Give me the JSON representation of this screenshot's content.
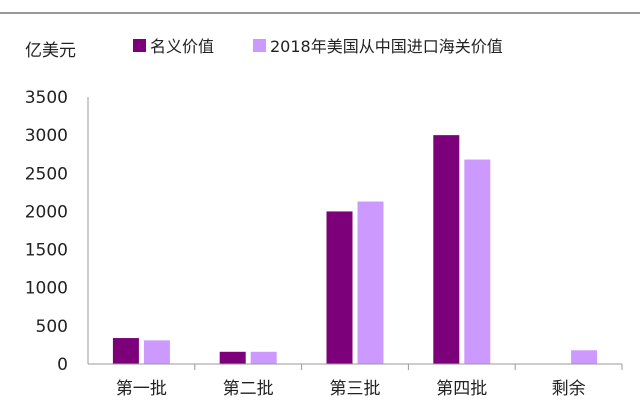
{
  "chart_data": {
    "type": "bar",
    "y_unit": "亿美元",
    "categories": [
      "第一批",
      "第二批",
      "第三批",
      "第四批",
      "剩余"
    ],
    "series": [
      {
        "name": "名义价值",
        "color": "#7b0079",
        "values": [
          340,
          160,
          2000,
          3000,
          null
        ]
      },
      {
        "name": "2018年美国从中国进口海关价值",
        "color": "#cc99ff",
        "values": [
          310,
          160,
          2130,
          2680,
          180
        ]
      }
    ],
    "ylim": [
      0,
      3500
    ],
    "yticks": [
      0,
      500,
      1000,
      1500,
      2000,
      2500,
      3000,
      3500
    ],
    "legend": "top",
    "grid": false
  }
}
